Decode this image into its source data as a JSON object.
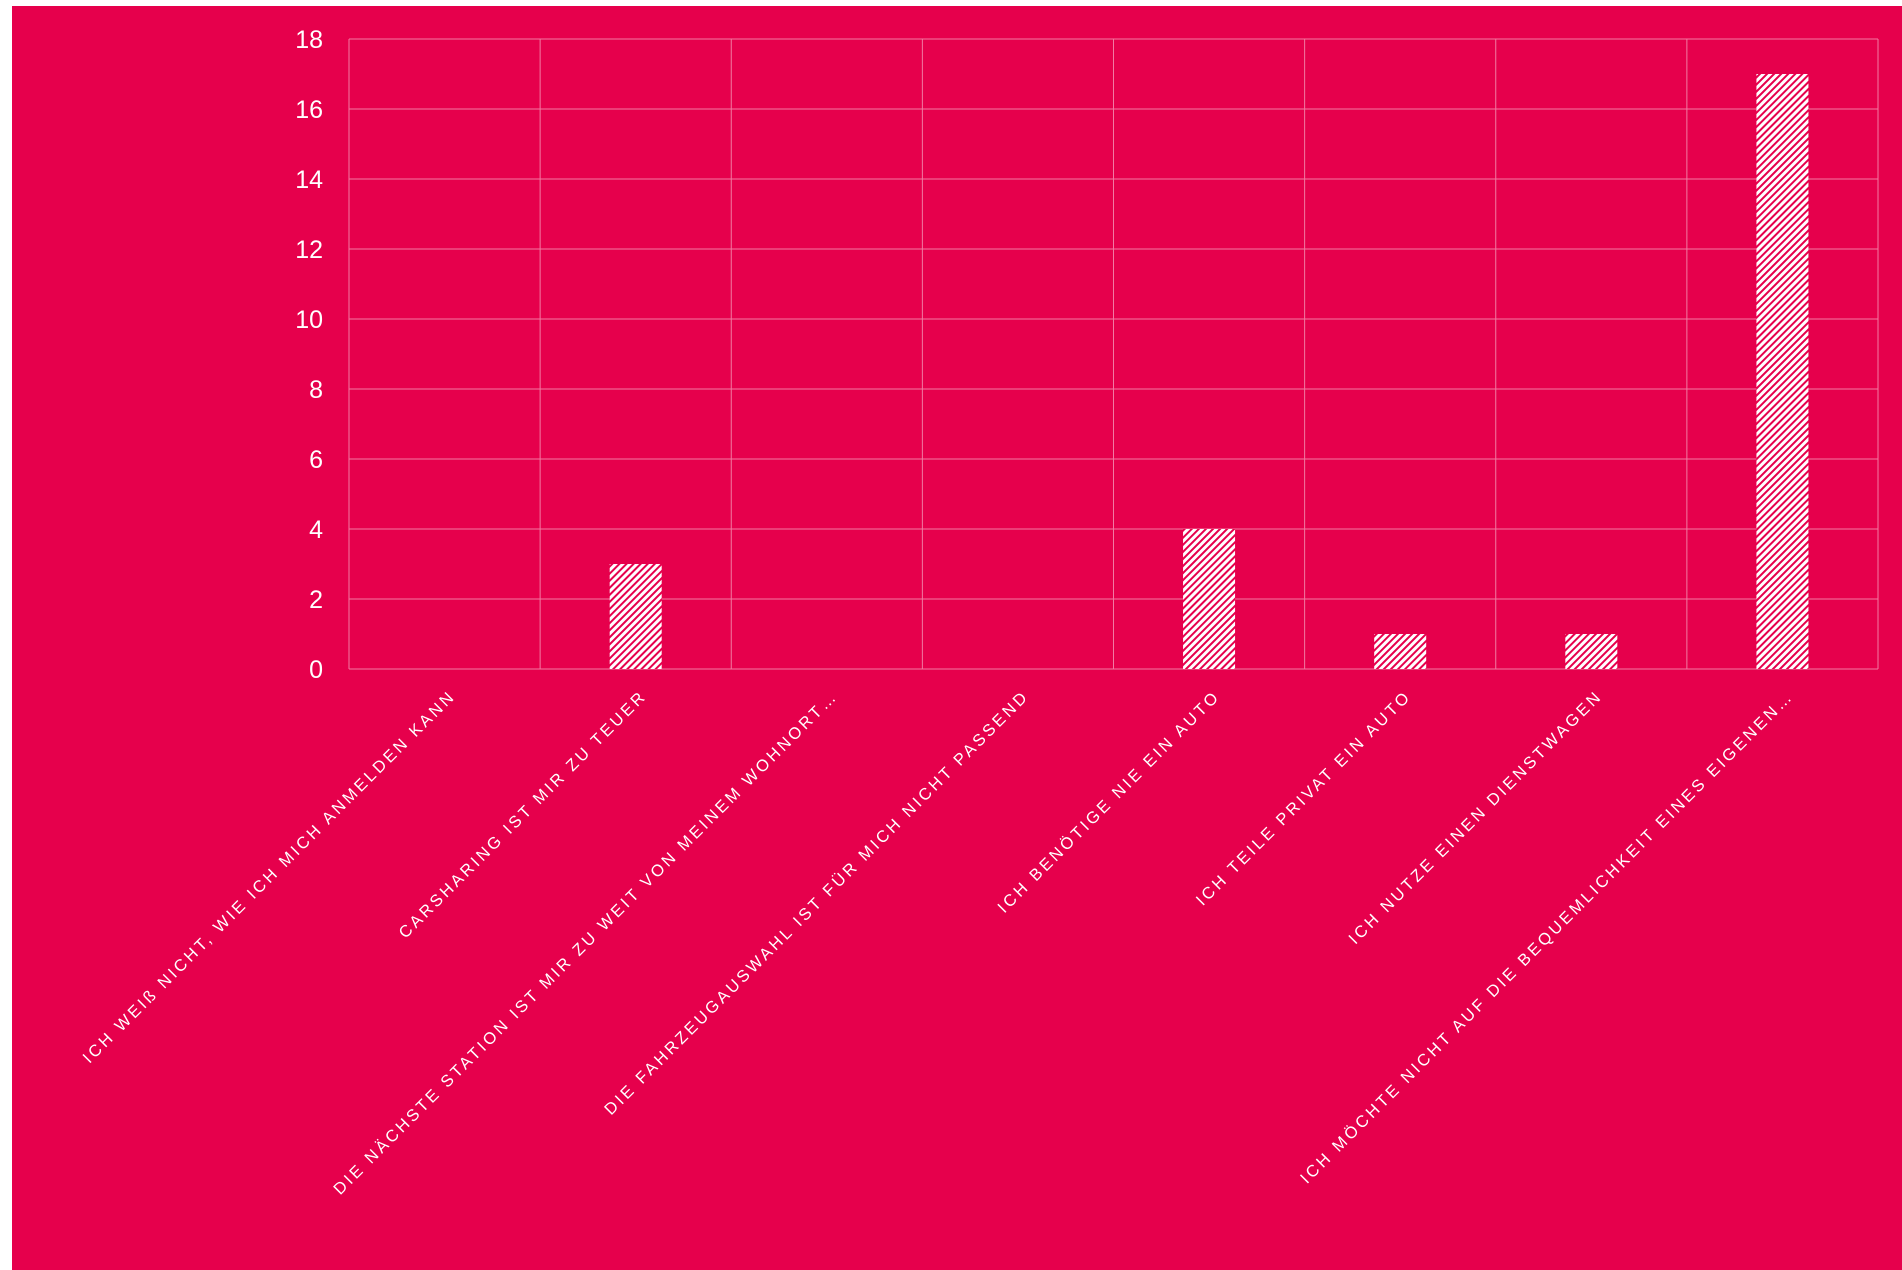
{
  "colors": {
    "background": "#e6004c",
    "gridline": "#f27aa2",
    "bar_fill": "#ffffff",
    "text": "#ffffff"
  },
  "chart_data": {
    "type": "bar",
    "title": "",
    "xlabel": "",
    "ylabel": "",
    "categories": [
      "ICH WEIß NICHT, WIE ICH MICH ANMELDEN KANN",
      "CARSHARING IST MIR ZU TEUER",
      "DIE NÄCHSTE STATION IST MIR ZU WEIT VON MEINEM WOHNORT…",
      "DIE FAHRZEUGAUSWAHL IST FÜR MICH NICHT PASSEND",
      "ICH BENÖTIGE NIE EIN AUTO",
      "ICH TEILE PRIVAT EIN AUTO",
      "ICH NUTZE EINEN DIENSTWAGEN",
      "ICH MÖCHTE NICHT AUF DIE BEQUEMLICHKEIT EINES EIGENEN…"
    ],
    "values": [
      0,
      3,
      0,
      0,
      4,
      1,
      1,
      17
    ],
    "ylim": [
      0,
      18
    ],
    "yticks": [
      0,
      2,
      4,
      6,
      8,
      10,
      12,
      14,
      16,
      18
    ],
    "grid": true,
    "bar_pattern": "diagonal-hatch",
    "legend": "none"
  }
}
